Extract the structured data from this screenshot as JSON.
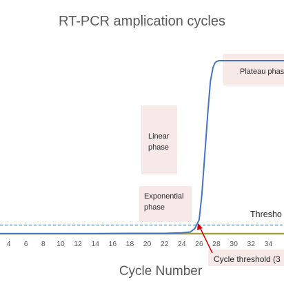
{
  "chart_data": {
    "type": "line",
    "title": "RT-PCR amplication cycles",
    "xlabel": "Cycle Number",
    "ylabel": "",
    "x_ticks": [
      4,
      6,
      8,
      10,
      12,
      14,
      16,
      18,
      20,
      22,
      24,
      26,
      28,
      30,
      32,
      34
    ],
    "xlim": [
      3.0,
      35.8
    ],
    "ylim": [
      0,
      100
    ],
    "series": [
      {
        "color": "#4472c4",
        "x": [
          3,
          6,
          10,
          14,
          18,
          22,
          24,
          25,
          25.5,
          26,
          26.3,
          26.6,
          27,
          27.3,
          27.6,
          27.8,
          28,
          28.3,
          29,
          32,
          35.8
        ],
        "values": [
          0,
          0,
          0,
          0,
          0.2,
          0.2,
          0.5,
          1,
          3,
          8,
          22,
          42,
          70,
          88,
          96,
          98.5,
          99.5,
          100,
          100,
          100,
          100
        ]
      },
      {
        "color": "#a5a040",
        "x": [
          3,
          10,
          20,
          24,
          25,
          35.8
        ],
        "values": [
          0,
          0,
          0,
          0,
          0,
          0
        ]
      }
    ],
    "threshold": {
      "label": "Thresho",
      "value": 5,
      "color": "#4472c4"
    },
    "annotations": {
      "linear": [
        "Linear",
        "phase"
      ],
      "exponential": [
        "Exponential",
        "phase"
      ],
      "plateau": [
        "Plateau phas"
      ],
      "cycle_threshold": "Cycle threshold (3"
    },
    "colors": {
      "annotation_bg": "#f8e9e9",
      "arrow": "#cc0000",
      "axis": "#bfbfbf"
    }
  }
}
